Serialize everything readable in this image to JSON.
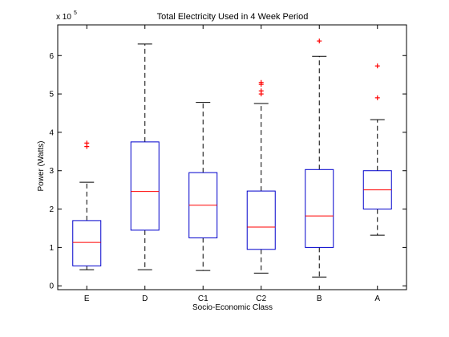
{
  "chart_data": {
    "type": "box",
    "title": "Total Electricity Used in 4 Week Period",
    "xlabel": "Socio-Economic Class",
    "ylabel": "Power (Watts)",
    "y_multiplier": "x 10",
    "y_exponent": "5",
    "ylim": [
      -0.1,
      6.8
    ],
    "yticks": [
      0,
      1,
      2,
      3,
      4,
      5,
      6
    ],
    "grid": false,
    "colors": {
      "box": "#0000cc",
      "median": "#ff0000",
      "outlier": "#ff0000",
      "whisker": "#000000"
    },
    "categories": [
      "E",
      "D",
      "C1",
      "C2",
      "B",
      "A"
    ],
    "boxes": [
      {
        "label": "E",
        "whisker_low": 0.42,
        "q1": 0.52,
        "median": 1.13,
        "q3": 1.7,
        "whisker_high": 2.7,
        "outliers": [
          3.63,
          3.72
        ]
      },
      {
        "label": "D",
        "whisker_low": 0.42,
        "q1": 1.45,
        "median": 2.46,
        "q3": 3.75,
        "whisker_high": 6.3,
        "outliers": []
      },
      {
        "label": "C1",
        "whisker_low": 0.4,
        "q1": 1.25,
        "median": 2.1,
        "q3": 2.95,
        "whisker_high": 4.78,
        "outliers": []
      },
      {
        "label": "C2",
        "whisker_low": 0.33,
        "q1": 0.95,
        "median": 1.53,
        "q3": 2.47,
        "whisker_high": 4.75,
        "outliers": [
          5.0,
          5.08,
          5.25,
          5.3
        ]
      },
      {
        "label": "B",
        "whisker_low": 0.23,
        "q1": 1.0,
        "median": 1.82,
        "q3": 3.03,
        "whisker_high": 5.98,
        "outliers": [
          6.38
        ]
      },
      {
        "label": "A",
        "whisker_low": 1.32,
        "q1": 2.0,
        "median": 2.5,
        "q3": 3.0,
        "whisker_high": 4.33,
        "outliers": [
          4.9,
          5.73
        ]
      }
    ]
  }
}
